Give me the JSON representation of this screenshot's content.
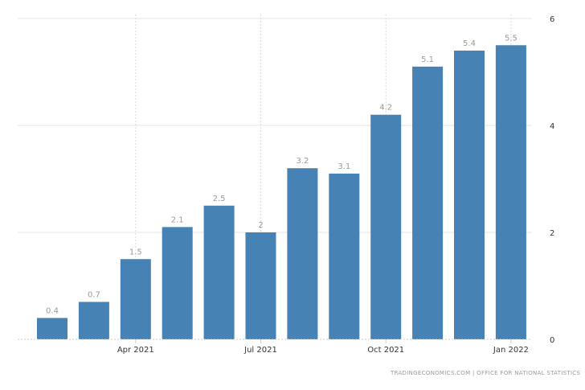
{
  "chart_data": {
    "type": "bar",
    "categories": [
      "Feb 2021",
      "Mar 2021",
      "Apr 2021",
      "May 2021",
      "Jun 2021",
      "Jul 2021",
      "Aug 2021",
      "Sep 2021",
      "Oct 2021",
      "Nov 2021",
      "Dec 2021",
      "Jan 2022"
    ],
    "values": [
      0.4,
      0.7,
      1.5,
      2.1,
      2.5,
      2,
      3.2,
      3.1,
      4.2,
      5.1,
      5.4,
      5.5
    ],
    "data_labels": [
      "0.4",
      "0.7",
      "1.5",
      "2.1",
      "2.5",
      "2",
      "3.2",
      "3.1",
      "4.2",
      "5.1",
      "5.4",
      "5.5"
    ],
    "x_ticks": [
      {
        "index": 2,
        "label": "Apr 2021"
      },
      {
        "index": 5,
        "label": "Jul 2021"
      },
      {
        "index": 8,
        "label": "Oct 2021"
      },
      {
        "index": 11,
        "label": "Jan 2022"
      }
    ],
    "y_ticks": [
      0,
      2,
      4,
      6
    ],
    "ylim": [
      0,
      6
    ],
    "y_axis_side": "right",
    "grid": true,
    "bar_color": "#4682b4",
    "title": "",
    "xlabel": "",
    "ylabel": ""
  },
  "source": "TRADINGECONOMICS.COM  |  OFFICE FOR NATIONAL STATISTICS"
}
